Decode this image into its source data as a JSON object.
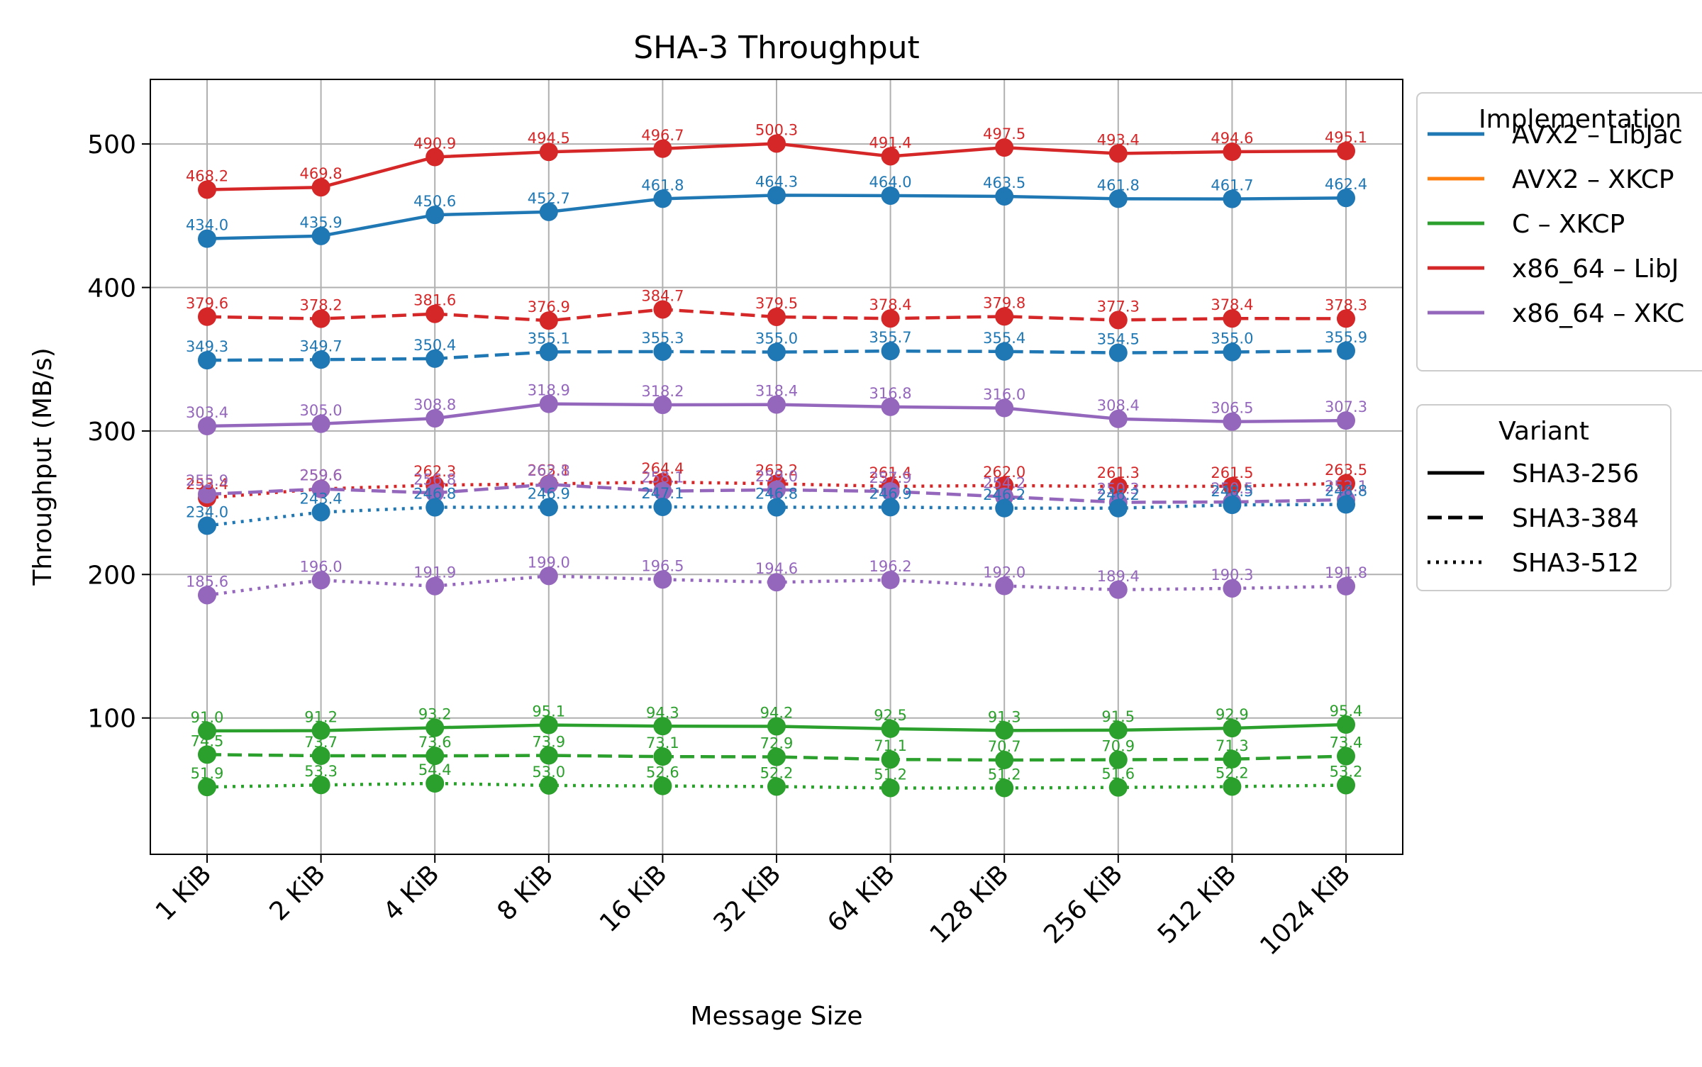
{
  "chart_data": {
    "type": "line",
    "title": "SHA-3 Throughput",
    "xlabel": "Message Size",
    "ylabel": "Throughput (MB/s)",
    "categories": [
      "1 KiB",
      "2 KiB",
      "4 KiB",
      "8 KiB",
      "16 KiB",
      "32 KiB",
      "64 KiB",
      "128 KiB",
      "256 KiB",
      "512 KiB",
      "1024 KiB"
    ],
    "ylim": [
      5,
      545
    ],
    "yticks": [
      100,
      200,
      300,
      400,
      500
    ],
    "grid": true,
    "legend_placement": "outside right",
    "implementation_legend": {
      "title": "Implementation",
      "entries": [
        {
          "label": "AVX2 – LibJac",
          "color": "#1f77b4"
        },
        {
          "label": "AVX2 – XKCP",
          "color": "#ff7f0e"
        },
        {
          "label": "C – XKCP",
          "color": "#2ca02c"
        },
        {
          "label": "x86_64 – LibJ",
          "color": "#d62728"
        },
        {
          "label": "x86_64 – XKC",
          "color": "#9467bd"
        }
      ]
    },
    "variant_legend": {
      "title": "Variant",
      "entries": [
        {
          "label": "SHA3-256",
          "style": "solid"
        },
        {
          "label": "SHA3-384",
          "style": "dashed"
        },
        {
          "label": "SHA3-512",
          "style": "dotted"
        }
      ]
    },
    "series": [
      {
        "impl": "x86_64 – LibJ",
        "variant": "SHA3-256",
        "color": "#d62728",
        "style": "solid",
        "values": [
          468.2,
          469.8,
          490.9,
          494.5,
          496.7,
          500.3,
          491.4,
          497.5,
          493.4,
          494.6,
          495.1
        ],
        "labels": [
          "468.2",
          "469.8",
          "490.9",
          "494.5",
          "496.7",
          "500.3",
          "491.4",
          "497.5",
          "493.4",
          "494.6",
          "495.1"
        ]
      },
      {
        "impl": "AVX2 – LibJac",
        "variant": "SHA3-256",
        "color": "#1f77b4",
        "style": "solid",
        "values": [
          434.0,
          435.9,
          450.6,
          452.7,
          461.8,
          464.3,
          464.0,
          463.5,
          461.8,
          461.7,
          462.4
        ],
        "labels": [
          "434.0",
          "435.9",
          "450.6",
          "452.7",
          "461.8",
          "464.3",
          "464.0",
          "463.5",
          "461.8",
          "461.7",
          "462.4"
        ]
      },
      {
        "impl": "x86_64 – LibJ",
        "variant": "SHA3-384",
        "color": "#d62728",
        "style": "dashed",
        "values": [
          379.6,
          378.2,
          381.6,
          376.9,
          384.7,
          379.5,
          378.4,
          379.8,
          377.3,
          378.4,
          378.3
        ],
        "labels": [
          "379.6",
          "378.2",
          "381.6",
          "376.9",
          "384.7",
          "379.5",
          "378.4",
          "379.8",
          "377.3",
          "378.4",
          "378.3"
        ]
      },
      {
        "impl": "AVX2 – LibJac",
        "variant": "SHA3-384",
        "color": "#1f77b4",
        "style": "dashed",
        "values": [
          349.3,
          349.7,
          350.4,
          355.1,
          355.3,
          355.0,
          355.7,
          355.4,
          354.5,
          355.0,
          355.9
        ],
        "labels": [
          "349.3",
          "349.7",
          "350.4",
          "355.1",
          "355.3",
          "355.0",
          "355.7",
          "355.4",
          "354.5",
          "355.0",
          "355.9"
        ]
      },
      {
        "impl": "x86_64 – XKC",
        "variant": "SHA3-256",
        "color": "#9467bd",
        "style": "solid",
        "values": [
          303.4,
          305.0,
          308.8,
          318.9,
          318.2,
          318.4,
          316.8,
          316.0,
          308.4,
          306.5,
          307.3
        ],
        "labels": [
          "303.4",
          "305.0",
          "308.8",
          "318.9",
          "318.2",
          "318.4",
          "316.8",
          "316.0",
          "308.4",
          "306.5",
          "307.3"
        ]
      },
      {
        "impl": "x86_64 – LibJ",
        "variant": "SHA3-512",
        "color": "#d62728",
        "style": "dotted",
        "values": [
          253.4,
          259.6,
          262.3,
          263.1,
          264.4,
          263.2,
          261.4,
          262.0,
          261.3,
          261.5,
          263.5
        ],
        "labels": [
          "253.4",
          "259.6",
          "262.3",
          "263.1",
          "264.4",
          "263.2",
          "261.4",
          "262.0",
          "261.3",
          "261.5",
          "263.5"
        ]
      },
      {
        "impl": "x86_64 – XKC",
        "variant": "SHA3-384",
        "color": "#9467bd",
        "style": "dashed",
        "values": [
          255.9,
          259.6,
          256.8,
          262.8,
          258.1,
          259.0,
          257.9,
          254.2,
          250.3,
          250.5,
          252.1
        ],
        "labels": [
          "255.9",
          "259.6",
          "256.8",
          "262.8",
          "258.1",
          "259.0",
          "257.9",
          "254.2",
          "250.3",
          "250.5",
          "252.1"
        ]
      },
      {
        "impl": "AVX2 – LibJac",
        "variant": "SHA3-512",
        "color": "#1f77b4",
        "style": "dotted",
        "values": [
          234.0,
          243.4,
          246.8,
          246.9,
          247.1,
          246.8,
          246.9,
          246.2,
          246.2,
          248.5,
          248.8
        ],
        "labels": [
          "234.0",
          "243.4",
          "246.8",
          "246.9",
          "247.1",
          "246.8",
          "246.9",
          "246.2",
          "246.2",
          "248.5",
          "248.8"
        ]
      },
      {
        "impl": "x86_64 – XKC",
        "variant": "SHA3-512",
        "color": "#9467bd",
        "style": "dotted",
        "values": [
          185.6,
          196.0,
          191.9,
          199.0,
          196.5,
          194.6,
          196.2,
          192.0,
          189.4,
          190.3,
          191.8
        ],
        "labels": [
          "185.6",
          "196.0",
          "191.9",
          "199.0",
          "196.5",
          "194.6",
          "196.2",
          "192.0",
          "189.4",
          "190.3",
          "191.8"
        ]
      },
      {
        "impl": "C – XKCP",
        "variant": "SHA3-256",
        "color": "#2ca02c",
        "style": "solid",
        "values": [
          91.0,
          91.2,
          93.2,
          95.1,
          94.3,
          94.2,
          92.5,
          91.3,
          91.5,
          92.9,
          95.4
        ],
        "labels": [
          "91.0",
          "91.2",
          "93.2",
          "95.1",
          "94.3",
          "94.2",
          "92.5",
          "91.3",
          "91.5",
          "92.9",
          "95.4"
        ]
      },
      {
        "impl": "C – XKCP",
        "variant": "SHA3-384",
        "color": "#2ca02c",
        "style": "dashed",
        "values": [
          74.5,
          73.7,
          73.6,
          73.9,
          73.1,
          72.9,
          71.1,
          70.7,
          70.9,
          71.3,
          73.4
        ],
        "labels": [
          "74.5",
          "73.7",
          "73.6",
          "73.9",
          "73.1",
          "72.9",
          "71.1",
          "70.7",
          "70.9",
          "71.3",
          "73.4"
        ]
      },
      {
        "impl": "C – XKCP",
        "variant": "SHA3-512",
        "color": "#2ca02c",
        "style": "dotted",
        "values": [
          51.9,
          53.3,
          54.4,
          53.0,
          52.6,
          52.2,
          51.2,
          51.2,
          51.6,
          52.2,
          53.2
        ],
        "labels": [
          "51.9",
          "53.3",
          "54.4",
          "53.0",
          "52.6",
          "52.2",
          "51.2",
          "51.2",
          "51.6",
          "52.2",
          "53.2"
        ]
      }
    ]
  }
}
